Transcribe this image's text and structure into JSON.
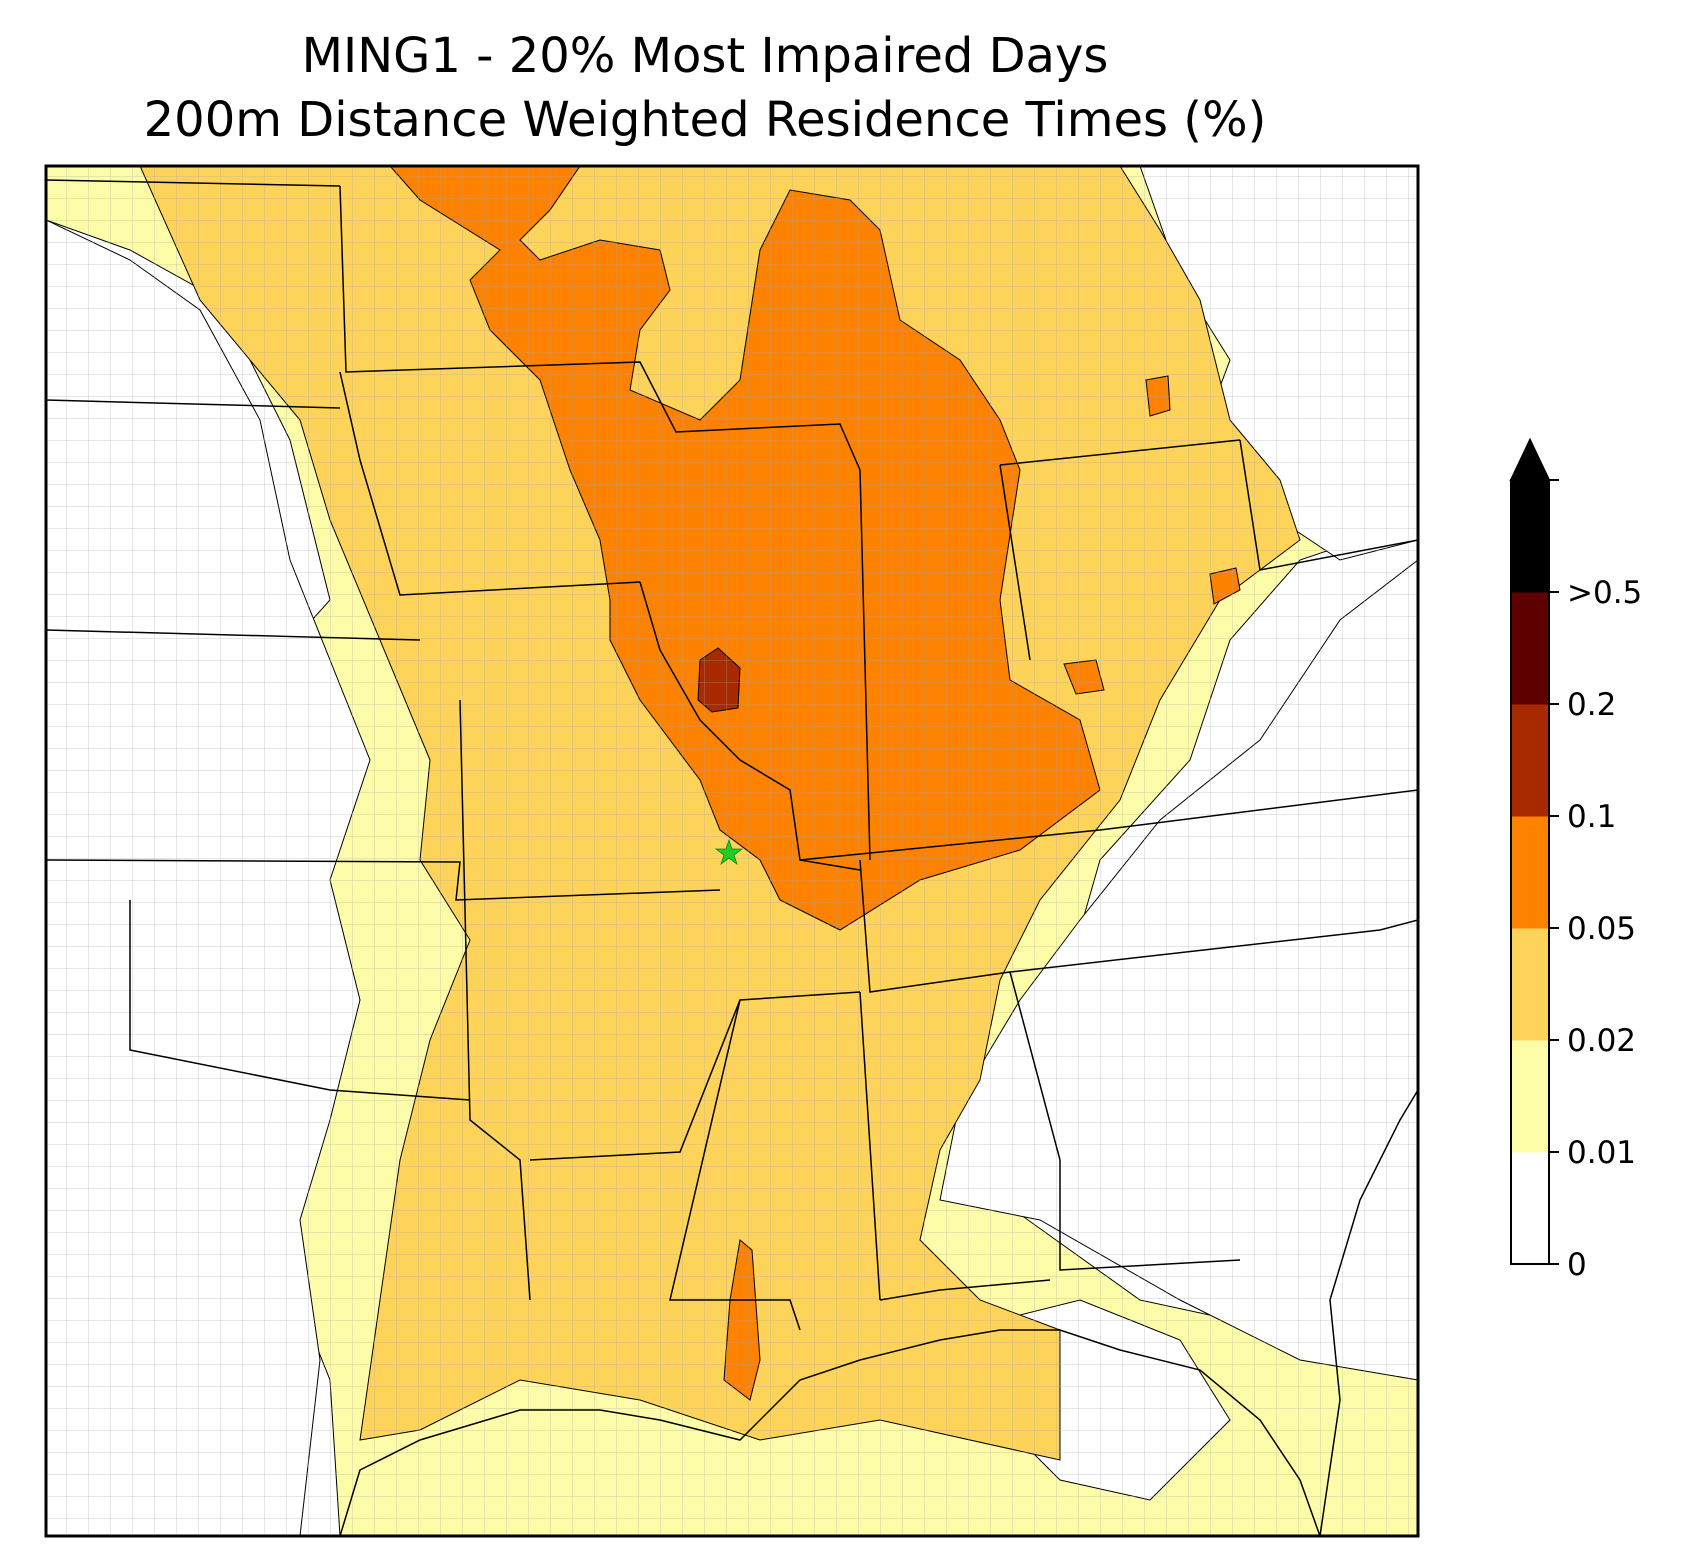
{
  "title": {
    "line1": "MING1 - 20% Most Impaired Days",
    "line2": "200m Distance Weighted Residence Times (%)"
  },
  "colorbar": {
    "extend": "max",
    "levels": [
      {
        "label": "0",
        "color": "#ffffff"
      },
      {
        "label": "0.01",
        "color": "#fdfca8"
      },
      {
        "label": "0.02",
        "color": "#fdd35a"
      },
      {
        "label": "0.05",
        "color": "#fd8200"
      },
      {
        "label": "0.1",
        "color": "#a82a00"
      },
      {
        "label": "0.2",
        "color": "#5e0000"
      },
      {
        "label": ">0.5",
        "color": "#000000"
      }
    ]
  },
  "site_marker": {
    "symbol": "star",
    "color": "#22cc22"
  },
  "colors": {
    "county_lines": "#a8a8a8",
    "state_lines": "#000000"
  }
}
